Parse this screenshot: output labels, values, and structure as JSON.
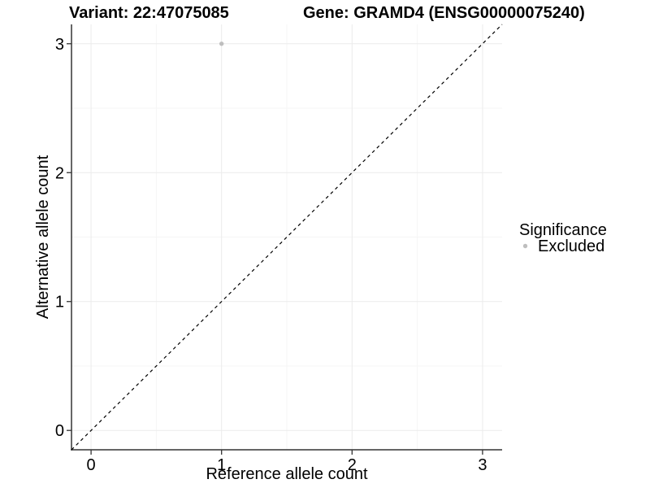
{
  "header": {
    "variant_title": "Variant: 22:47075085",
    "gene_title": "Gene: GRAMD4 (ENSG00000075240)"
  },
  "chart_data": {
    "type": "scatter",
    "points": [
      {
        "x": 1,
        "y": 3,
        "series": "Excluded"
      }
    ],
    "xlabel": "Reference allele count",
    "ylabel": "Alternative allele count",
    "xlim": [
      -0.15,
      3.15
    ],
    "ylim": [
      -0.15,
      3.15
    ],
    "xticks": [
      0,
      1,
      2,
      3
    ],
    "yticks": [
      0,
      1,
      2,
      3
    ],
    "xminor": [
      0.5,
      1.5,
      2.5
    ],
    "yminor": [
      0.5,
      1.5,
      2.5
    ],
    "grid": "major+minor",
    "reference_line": {
      "slope": 1,
      "intercept": 0,
      "style": "dashed"
    },
    "legend": {
      "title": "Significance",
      "position": "right",
      "items": [
        {
          "label": "Excluded",
          "color": "#bebebe"
        }
      ]
    },
    "colors": {
      "point": "#bebebe",
      "grid_major": "#ebebeb",
      "grid_minor": "#f5f5f5",
      "axis_line": "#333333",
      "tick_label": "#333333",
      "reference_line": "#000000",
      "background": "#ffffff"
    }
  }
}
